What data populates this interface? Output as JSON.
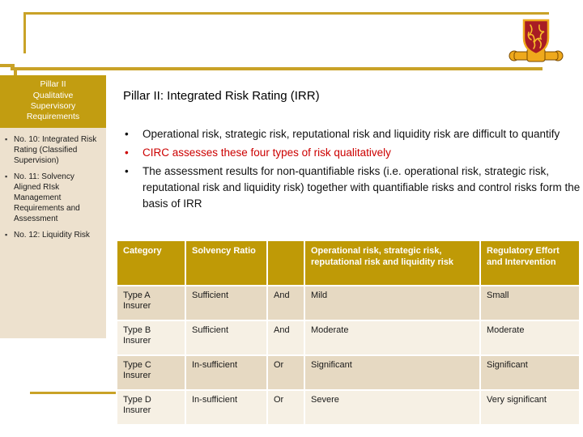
{
  "sidebar": {
    "header_line1": "Pillar II",
    "header_line2": "Qualitative Supervisory Requirements",
    "items": [
      "No. 10: Integrated Risk Rating (Classified Supervision)",
      "No. 11: Solvency Aligned RIsk Management Requirements and Assessment",
      "No. 12: Liquidity Risk"
    ]
  },
  "main": {
    "title": "Pillar II: Integrated Risk Rating (IRR)",
    "bullets": [
      {
        "text": "Operational risk, strategic risk, reputational risk and liquidity risk are difficult to quantify",
        "emphasis": "normal"
      },
      {
        "text": "CIRC assesses these four types of risk qualitatively",
        "emphasis": "red"
      },
      {
        "text": "The assessment results for non-quantifiable risks (i.e. operational risk, strategic risk, reputational risk and liquidity risk) together with quantifiable risks and control risks form the basis of IRR",
        "emphasis": "normal"
      }
    ]
  },
  "table": {
    "headers": [
      "Category",
      "Solvency Ratio",
      "",
      "Operational risk, strategic risk, reputational risk and liquidity risk",
      "Regulatory Effort and Intervention"
    ],
    "rows": [
      [
        "Type A Insurer",
        "Sufficient",
        "And",
        "Mild",
        "Small"
      ],
      [
        "Type B Insurer",
        "Sufficient",
        "And",
        "Moderate",
        "Moderate"
      ],
      [
        "Type C Insurer",
        "In-sufficient",
        "Or",
        "Significant",
        "Significant"
      ],
      [
        "Type D Insurer",
        "In-sufficient",
        "Or",
        "Severe",
        "Very significant"
      ]
    ]
  },
  "logo": {
    "name": "university-crest"
  },
  "colors": {
    "gold_line": "#C9A227",
    "gold_fill": "#C29D11",
    "table_header_bg": "#BF9A06",
    "sidebar_bg": "#EDE1CE",
    "row_dark": "#E6D9C2",
    "row_light": "#F6F0E4",
    "red_text": "#CC0000",
    "crest_red": "#A81C24",
    "crest_gold": "#EFA91C"
  }
}
